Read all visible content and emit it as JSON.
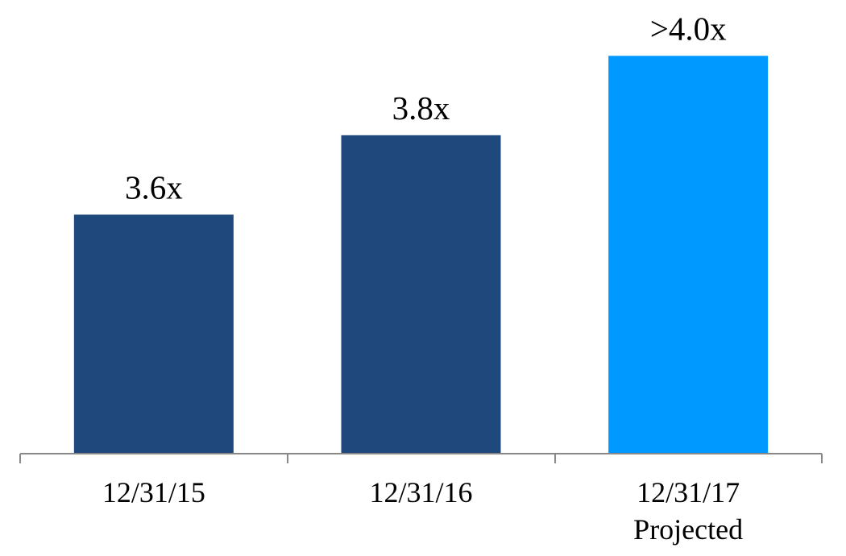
{
  "chart_data": {
    "type": "bar",
    "categories": [
      "12/31/15",
      "12/31/16",
      "12/31/17\nProjected"
    ],
    "values": [
      3.6,
      3.8,
      4.0
    ],
    "value_labels": [
      "3.6x",
      "3.8x",
      ">4.0x"
    ],
    "colors": [
      "#1f497d",
      "#1f497d",
      "#0099ff"
    ],
    "ylim": [
      3.0,
      4.1
    ]
  }
}
